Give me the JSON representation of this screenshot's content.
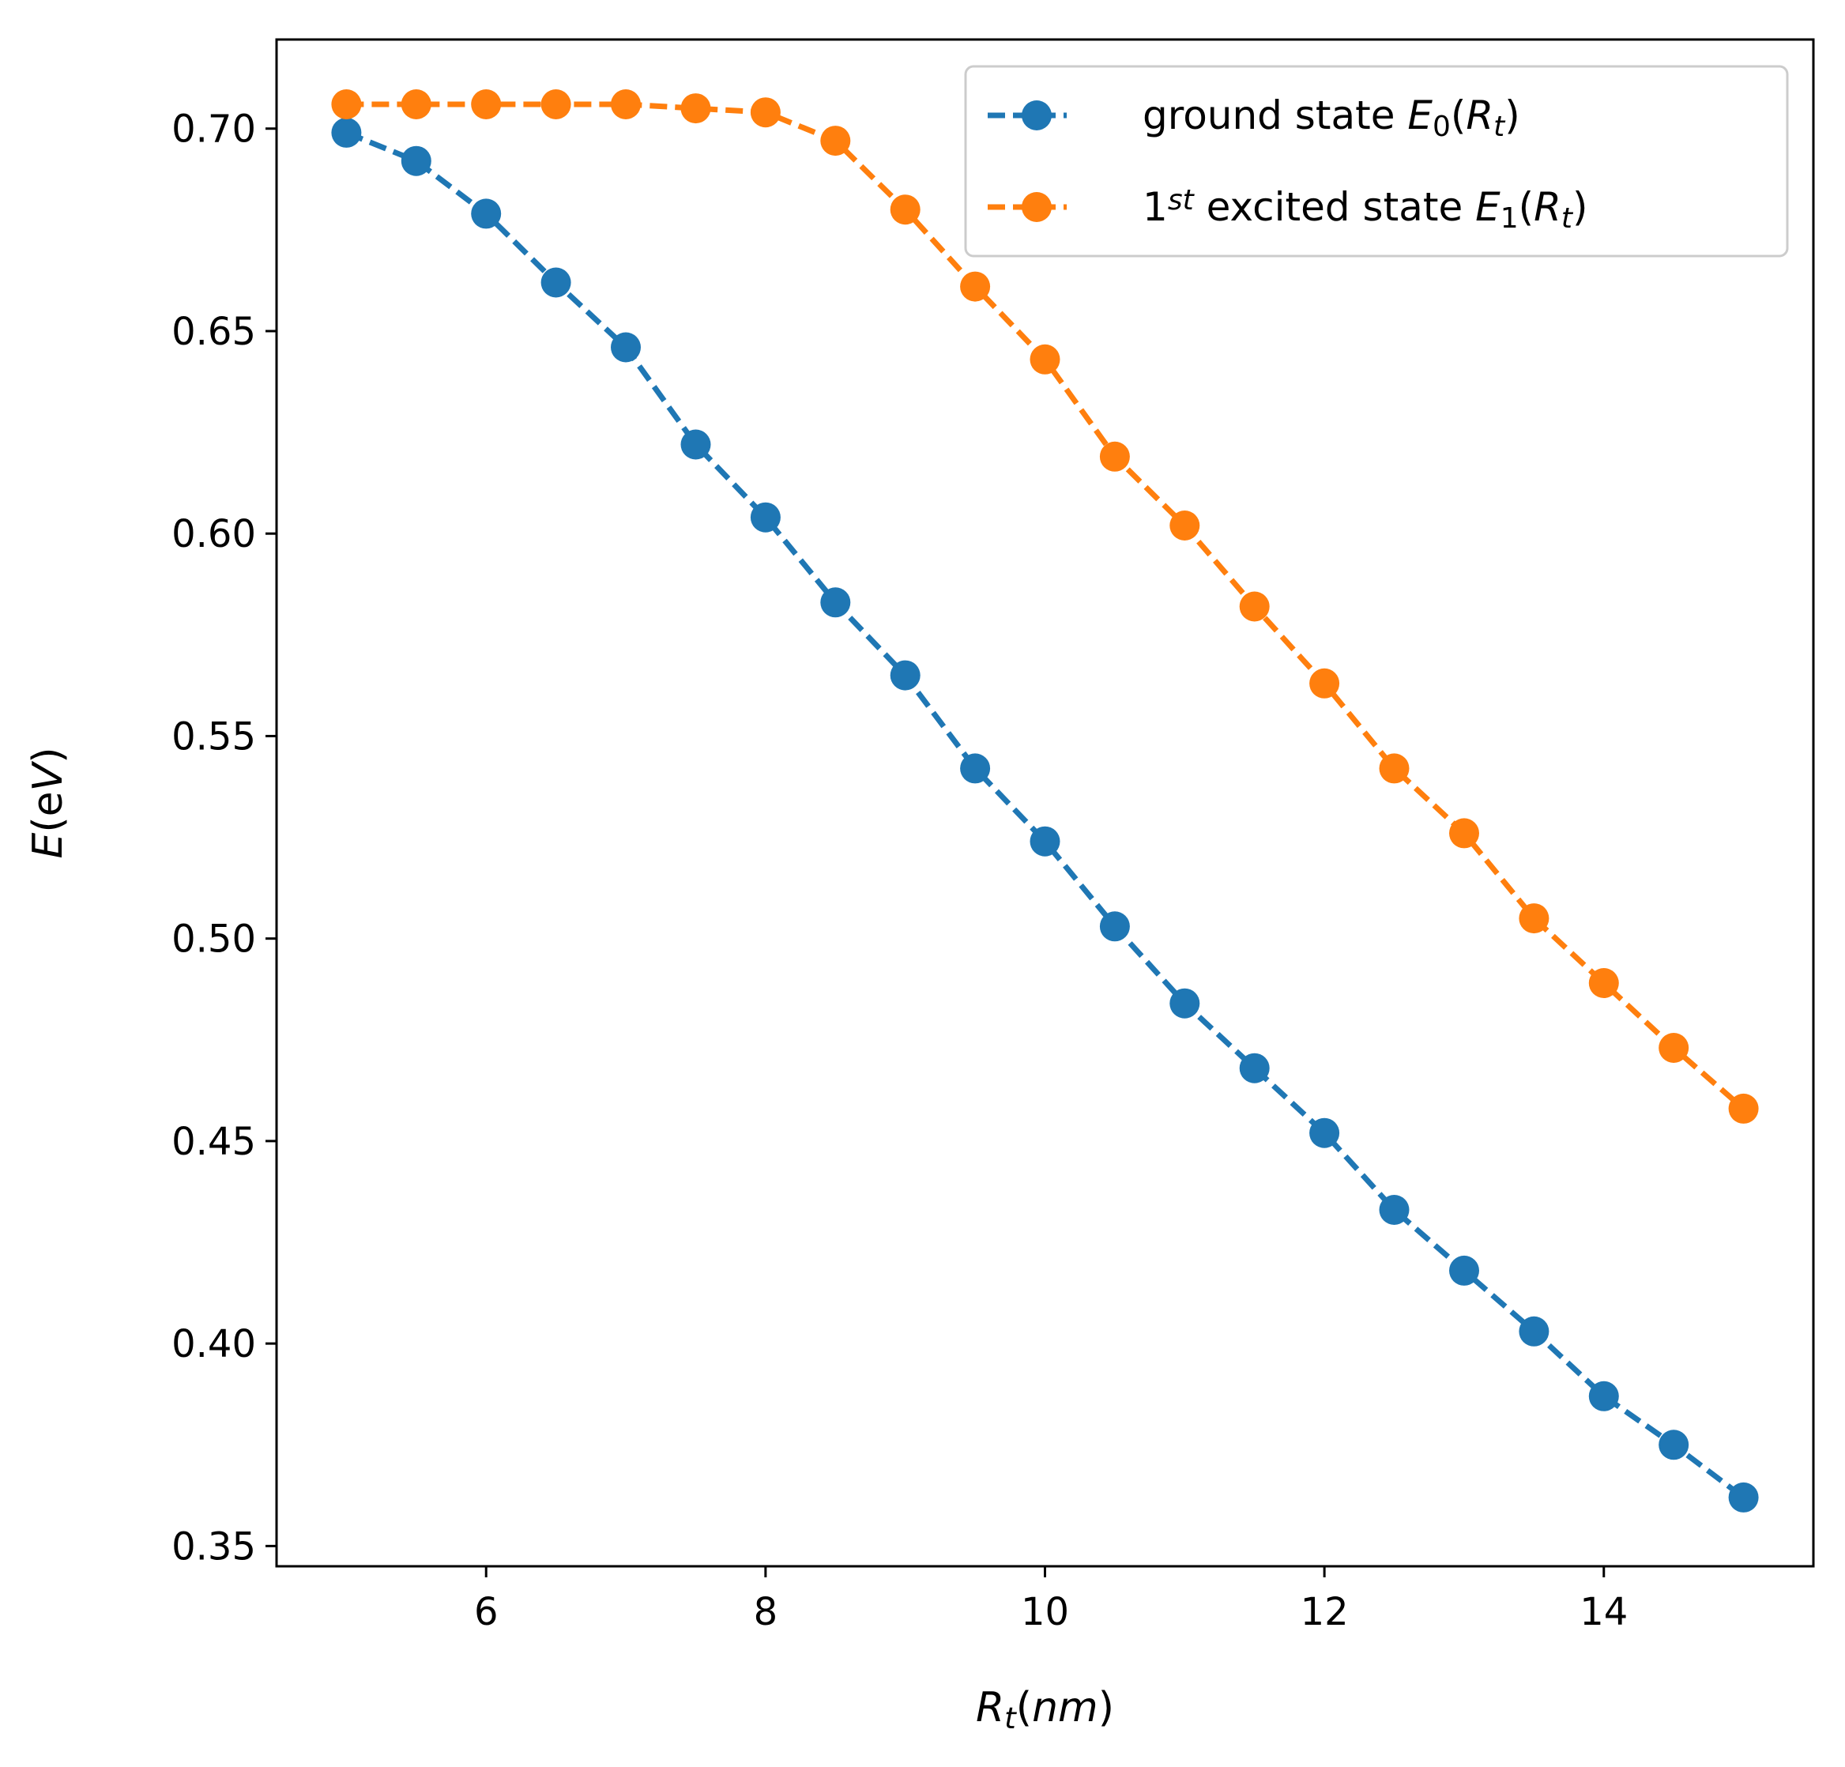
{
  "chart_data": {
    "type": "line",
    "xlabel_parts": [
      {
        "text": "R",
        "italic": true
      },
      {
        "text": "t",
        "italic": true,
        "sub": true
      },
      {
        "text": "(",
        "italic": false
      },
      {
        "text": "nm",
        "italic": true
      },
      {
        "text": ")",
        "italic": false
      }
    ],
    "ylabel_parts": [
      {
        "text": "E",
        "italic": true
      },
      {
        "text": "(e",
        "italic": false
      },
      {
        "text": "V",
        "italic": true
      },
      {
        "text": ")",
        "italic": false
      }
    ],
    "xlim": [
      4.5,
      15.5
    ],
    "ylim": [
      0.345,
      0.722
    ],
    "xticks": [
      6,
      8,
      10,
      12,
      14
    ],
    "xtick_labels": [
      "6",
      "8",
      "10",
      "12",
      "14"
    ],
    "yticks": [
      0.35,
      0.4,
      0.45,
      0.5,
      0.55,
      0.6,
      0.65,
      0.7
    ],
    "ytick_labels": [
      "0.35",
      "0.40",
      "0.45",
      "0.50",
      "0.55",
      "0.60",
      "0.65",
      "0.70"
    ],
    "grid": false,
    "legend_position": "top-right",
    "x": [
      5,
      5.5,
      6,
      6.5,
      7,
      7.5,
      8,
      8.5,
      9,
      9.5,
      10,
      10.5,
      11,
      11.5,
      12,
      12.5,
      13,
      13.5,
      14,
      14.5,
      15
    ],
    "series": [
      {
        "legend_parts": [
          {
            "text": "ground state ",
            "italic": false
          },
          {
            "text": "E",
            "italic": true
          },
          {
            "text": "0",
            "italic": false,
            "sub": true
          },
          {
            "text": "(",
            "italic": false
          },
          {
            "text": "R",
            "italic": true
          },
          {
            "text": "t",
            "italic": true,
            "sub": true
          },
          {
            "text": ")",
            "italic": false
          }
        ],
        "color": "#1f77b4",
        "values": [
          0.699,
          0.692,
          0.679,
          0.662,
          0.646,
          0.622,
          0.604,
          0.583,
          0.565,
          0.542,
          0.524,
          0.503,
          0.484,
          0.468,
          0.452,
          0.433,
          0.418,
          0.403,
          0.387,
          0.375,
          0.362
        ]
      },
      {
        "legend_parts": [
          {
            "text": "1",
            "italic": false
          },
          {
            "text": "st",
            "italic": true,
            "sup": true
          },
          {
            "text": " excited state ",
            "italic": false
          },
          {
            "text": "E",
            "italic": true
          },
          {
            "text": "1",
            "italic": false,
            "sub": true
          },
          {
            "text": "(",
            "italic": false
          },
          {
            "text": "R",
            "italic": true
          },
          {
            "text": "t",
            "italic": true,
            "sub": true
          },
          {
            "text": ")",
            "italic": false
          }
        ],
        "color": "#ff7f0e",
        "values": [
          0.706,
          0.706,
          0.706,
          0.706,
          0.706,
          0.705,
          0.704,
          0.697,
          0.68,
          0.661,
          0.643,
          0.619,
          0.602,
          0.582,
          0.563,
          0.542,
          0.526,
          0.505,
          0.489,
          0.473,
          0.458
        ]
      }
    ]
  }
}
